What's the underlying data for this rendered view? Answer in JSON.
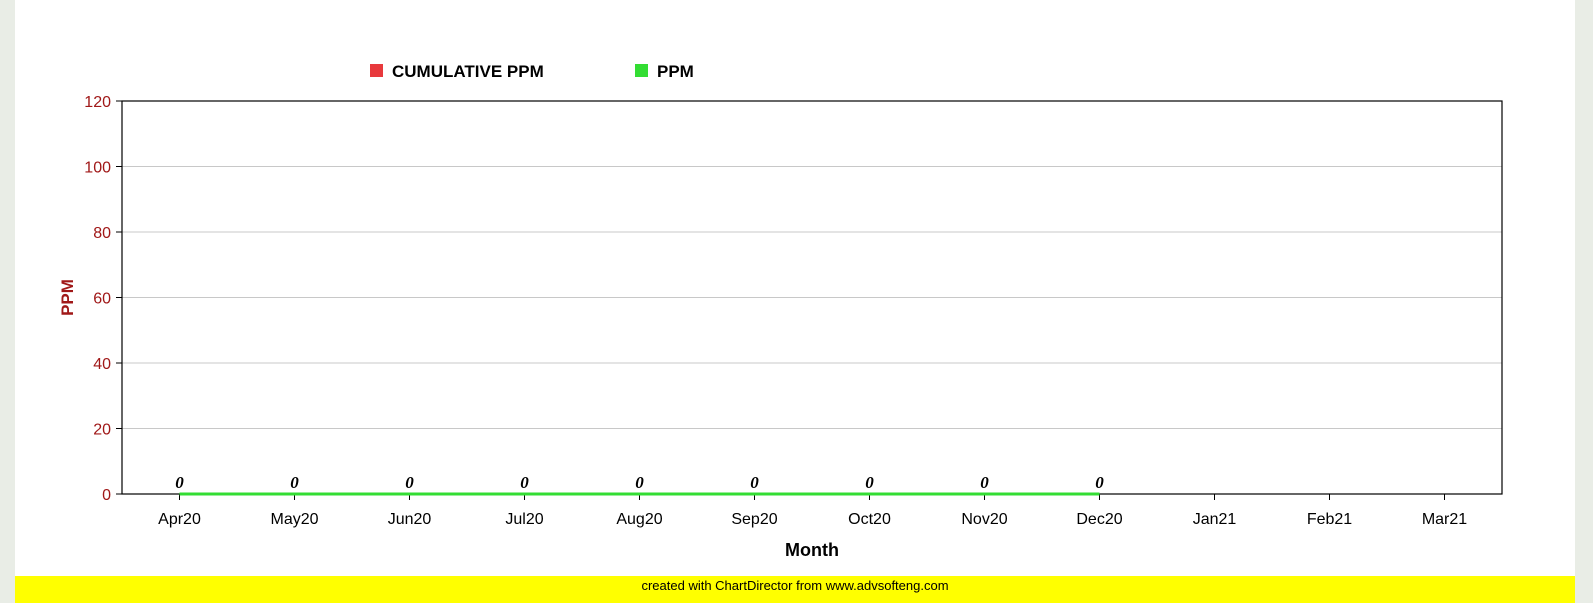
{
  "chart_data": {
    "type": "line",
    "title": "",
    "xlabel": "Month",
    "ylabel": "PPM",
    "ylim": [
      0,
      120
    ],
    "yticks": [
      0,
      20,
      40,
      60,
      80,
      100,
      120
    ],
    "categories": [
      "Apr20",
      "May20",
      "Jun20",
      "Jul20",
      "Aug20",
      "Sep20",
      "Oct20",
      "Nov20",
      "Dec20",
      "Jan21",
      "Feb21",
      "Mar21"
    ],
    "series": [
      {
        "name": "CUMULATIVE PPM",
        "color": "#e8393c",
        "values": [
          0,
          0,
          0,
          0,
          0,
          0,
          0,
          0,
          0,
          null,
          null,
          null
        ]
      },
      {
        "name": "PPM",
        "color": "#33dd33",
        "values": [
          0,
          0,
          0,
          0,
          0,
          0,
          0,
          0,
          0,
          null,
          null,
          null
        ]
      }
    ],
    "data_labels": [
      "0",
      "0",
      "0",
      "0",
      "0",
      "0",
      "0",
      "0",
      "0"
    ],
    "grid": true,
    "legend_position": "top-left"
  },
  "colors": {
    "axis_text": "#a01818",
    "line": "#8b1a1a",
    "grid": "#c8c8c8",
    "footer_bg": "#ffff00"
  },
  "footer": {
    "text": "created with ChartDirector from www.advsofteng.com"
  }
}
